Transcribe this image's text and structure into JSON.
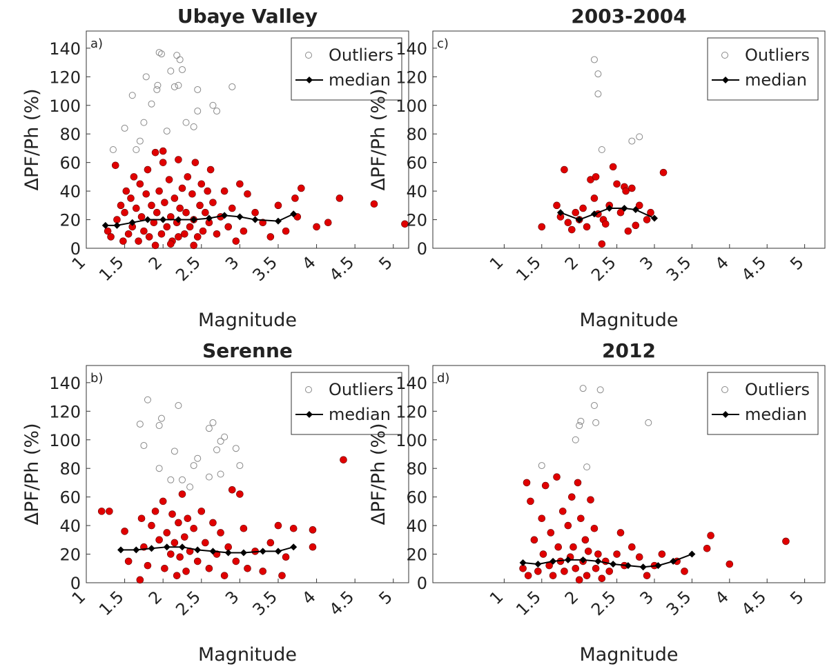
{
  "chart_data": [
    {
      "type": "scatter",
      "title": "Ubaye Valley",
      "panel_label": "a)",
      "x_label": "Magnitude",
      "y_label": "ΔPF/Ph (%)",
      "xlim": [
        1,
        5.2
      ],
      "ylim": [
        0,
        152
      ],
      "xticks": [
        1,
        1.5,
        2,
        2.5,
        3,
        3.5,
        4,
        4.5,
        5
      ],
      "yticks": [
        0,
        20,
        40,
        60,
        80,
        100,
        120,
        140
      ],
      "legend": "upper right",
      "series": [
        {
          "color": "#e00000",
          "x": [
            1.28,
            1.32,
            1.38,
            1.4,
            1.45,
            1.48,
            1.5,
            1.52,
            1.55,
            1.58,
            1.6,
            1.62,
            1.65,
            1.68,
            1.7,
            1.72,
            1.75,
            1.78,
            1.8,
            1.82,
            1.85,
            1.88,
            1.9,
            1.92,
            1.95,
            1.98,
            2.0,
            2.02,
            2.05,
            2.08,
            2.1,
            2.12,
            2.15,
            2.18,
            2.2,
            2.22,
            2.25,
            2.28,
            2.3,
            2.32,
            2.35,
            2.38,
            2.4,
            2.42,
            2.45,
            2.48,
            2.5,
            2.52,
            2.55,
            2.58,
            2.6,
            2.62,
            2.65,
            2.7,
            2.75,
            2.8,
            2.85,
            2.9,
            2.95,
            3.0,
            3.05,
            3.1,
            3.2,
            3.3,
            3.4,
            3.5,
            3.6,
            3.72,
            3.75,
            3.8,
            4.0,
            4.15,
            4.3,
            4.75,
            5.15,
            1.9,
            2.0,
            2.1,
            2.2,
            2.4
          ],
          "values": [
            12,
            8,
            58,
            20,
            30,
            5,
            25,
            40,
            10,
            35,
            15,
            50,
            28,
            5,
            45,
            22,
            12,
            38,
            55,
            8,
            30,
            18,
            67,
            25,
            40,
            10,
            60,
            32,
            15,
            48,
            22,
            5,
            35,
            18,
            62,
            28,
            42,
            10,
            25,
            50,
            15,
            38,
            20,
            60,
            8,
            30,
            45,
            12,
            25,
            40,
            18,
            55,
            32,
            10,
            22,
            40,
            15,
            28,
            5,
            45,
            12,
            38,
            25,
            18,
            8,
            30,
            12,
            35,
            22,
            42,
            15,
            18,
            35,
            31,
            17,
            2,
            68,
            3,
            8,
            2
          ]
        },
        {
          "name": "Outliers",
          "color": "#888888",
          "x": [
            1.35,
            1.5,
            1.6,
            1.65,
            1.7,
            1.75,
            1.78,
            1.85,
            1.92,
            1.93,
            1.95,
            1.98,
            2.05,
            2.1,
            2.15,
            2.18,
            2.2,
            2.22,
            2.25,
            2.3,
            2.4,
            2.45,
            2.45,
            2.65,
            2.7,
            2.9
          ],
          "values": [
            69,
            84,
            107,
            69,
            75,
            88,
            120,
            101,
            111,
            114,
            137,
            136,
            82,
            124,
            113,
            135,
            114,
            132,
            125,
            88,
            85,
            96,
            111,
            100,
            96,
            113
          ]
        },
        {
          "name": "median",
          "color": "#000000",
          "x": [
            1.25,
            1.4,
            1.6,
            1.8,
            2,
            2.2,
            2.4,
            2.6,
            2.8,
            3,
            3.2,
            3.5,
            3.7
          ],
          "values": [
            16,
            16,
            18,
            20,
            20,
            20,
            20,
            21,
            23,
            22,
            20,
            19,
            24
          ]
        }
      ]
    },
    {
      "type": "scatter",
      "title": "2003-2004",
      "panel_label": "c)",
      "x_label": "Magnitude",
      "y_label": "ΔPF/Ph (%)",
      "xlim": [
        0.05,
        5.27
      ],
      "ylim": [
        0,
        152
      ],
      "xticks": [
        1,
        1.5,
        2,
        2.5,
        3,
        3.5,
        4,
        4.5,
        5
      ],
      "yticks": [
        0,
        20,
        40,
        60,
        80,
        100,
        120,
        140
      ],
      "legend": "upper right",
      "series": [
        {
          "color": "#e00000",
          "x": [
            1.5,
            1.7,
            1.75,
            1.8,
            1.85,
            1.9,
            1.95,
            2.0,
            2.05,
            2.1,
            2.15,
            2.2,
            2.22,
            2.25,
            2.3,
            2.32,
            2.35,
            2.4,
            2.45,
            2.5,
            2.55,
            2.6,
            2.62,
            2.65,
            2.7,
            2.75,
            2.8,
            2.9,
            2.95,
            3.12
          ],
          "values": [
            15,
            30,
            22,
            55,
            18,
            13,
            25,
            20,
            28,
            15,
            48,
            35,
            50,
            24,
            3,
            20,
            17,
            30,
            57,
            45,
            25,
            43,
            40,
            12,
            42,
            16,
            30,
            20,
            25,
            53
          ]
        },
        {
          "name": "Outliers",
          "color": "#888888",
          "x": [
            2.2,
            2.25,
            2.25,
            2.3,
            2.7,
            2.8
          ],
          "values": [
            132,
            122,
            108,
            69,
            75,
            78
          ]
        },
        {
          "name": "median",
          "color": "#000000",
          "x": [
            1.75,
            2,
            2.2,
            2.4,
            2.6,
            2.75,
            3
          ],
          "values": [
            25,
            20,
            24,
            28,
            28,
            27,
            21
          ]
        }
      ]
    },
    {
      "type": "scatter",
      "title": "Serenne",
      "panel_label": "b)",
      "x_label": "Magnitude",
      "y_label": "ΔPF/Ph (%)",
      "xlim": [
        1,
        5.2
      ],
      "ylim": [
        0,
        152
      ],
      "xticks": [
        1,
        1.5,
        2,
        2.5,
        3,
        3.5,
        4,
        4.5,
        5
      ],
      "yticks": [
        0,
        20,
        40,
        60,
        80,
        100,
        120,
        140
      ],
      "legend": "upper right",
      "series": [
        {
          "color": "#e00000",
          "x": [
            1.2,
            1.3,
            1.5,
            1.55,
            1.7,
            1.72,
            1.75,
            1.8,
            1.85,
            1.9,
            1.95,
            2.0,
            2.02,
            2.05,
            2.1,
            2.12,
            2.15,
            2.18,
            2.2,
            2.22,
            2.25,
            2.28,
            2.3,
            2.32,
            2.35,
            2.4,
            2.45,
            2.5,
            2.55,
            2.6,
            2.65,
            2.7,
            2.75,
            2.8,
            2.85,
            2.9,
            2.95,
            3.0,
            3.05,
            3.1,
            3.2,
            3.3,
            3.4,
            3.5,
            3.55,
            3.6,
            3.7,
            3.95,
            3.95,
            4.35
          ],
          "values": [
            50,
            50,
            36,
            15,
            2,
            45,
            25,
            12,
            40,
            50,
            30,
            57,
            10,
            35,
            20,
            48,
            28,
            5,
            42,
            18,
            62,
            32,
            8,
            45,
            22,
            38,
            15,
            50,
            28,
            10,
            42,
            20,
            35,
            5,
            25,
            65,
            15,
            62,
            38,
            10,
            22,
            8,
            28,
            40,
            5,
            18,
            38,
            37,
            25,
            86
          ]
        },
        {
          "name": "Outliers",
          "color": "#888888",
          "x": [
            1.7,
            1.75,
            1.8,
            1.95,
            1.95,
            1.98,
            2.1,
            2.15,
            2.2,
            2.25,
            2.35,
            2.4,
            2.45,
            2.6,
            2.6,
            2.65,
            2.7,
            2.75,
            2.75,
            2.8,
            2.95,
            3.0
          ],
          "values": [
            111,
            96,
            128,
            80,
            110,
            115,
            72,
            92,
            124,
            72,
            67,
            82,
            87,
            74,
            108,
            112,
            93,
            76,
            99,
            102,
            94,
            82
          ]
        },
        {
          "name": "median",
          "color": "#000000",
          "x": [
            1.45,
            1.65,
            1.85,
            2.05,
            2.25,
            2.45,
            2.65,
            2.85,
            3.05,
            3.3,
            3.5,
            3.7
          ],
          "values": [
            23,
            23,
            24,
            25,
            25,
            23,
            22,
            21,
            21,
            22,
            22,
            25
          ]
        }
      ]
    },
    {
      "type": "scatter",
      "title": "2012",
      "panel_label": "d)",
      "x_label": "Magnitude",
      "y_label": "ΔPF/Ph (%)",
      "xlim": [
        0.05,
        5.27
      ],
      "ylim": [
        0,
        152
      ],
      "xticks": [
        1,
        1.5,
        2,
        2.5,
        3,
        3.5,
        4,
        4.5,
        5
      ],
      "yticks": [
        0,
        20,
        40,
        60,
        80,
        100,
        120,
        140
      ],
      "legend": "upper right",
      "series": [
        {
          "color": "#e00000",
          "x": [
            1.25,
            1.3,
            1.32,
            1.35,
            1.4,
            1.45,
            1.5,
            1.52,
            1.55,
            1.6,
            1.62,
            1.65,
            1.7,
            1.72,
            1.75,
            1.78,
            1.8,
            1.85,
            1.88,
            1.9,
            1.92,
            1.95,
            1.98,
            2.0,
            2.02,
            2.05,
            2.08,
            2.1,
            2.12,
            2.15,
            2.2,
            2.22,
            2.25,
            2.3,
            2.35,
            2.4,
            2.5,
            2.55,
            2.6,
            2.7,
            2.8,
            2.9,
            3.0,
            3.1,
            3.3,
            3.4,
            3.7,
            3.75,
            4.0,
            4.75
          ],
          "values": [
            10,
            70,
            5,
            57,
            30,
            8,
            45,
            20,
            68,
            12,
            35,
            5,
            74,
            25,
            15,
            50,
            8,
            40,
            18,
            60,
            25,
            10,
            70,
            2,
            45,
            15,
            30,
            5,
            22,
            58,
            38,
            10,
            20,
            3,
            15,
            8,
            20,
            35,
            12,
            25,
            18,
            5,
            12,
            20,
            15,
            8,
            24,
            33,
            13,
            29
          ]
        },
        {
          "name": "Outliers",
          "color": "#888888",
          "x": [
            1.5,
            1.95,
            2.0,
            2.02,
            2.05,
            2.1,
            2.2,
            2.22,
            2.28,
            2.92
          ],
          "values": [
            82,
            100,
            110,
            113,
            136,
            81,
            124,
            112,
            135,
            112
          ]
        },
        {
          "name": "median",
          "color": "#000000",
          "x": [
            1.25,
            1.45,
            1.65,
            1.85,
            2.05,
            2.25,
            2.45,
            2.65,
            2.85,
            3.05,
            3.25,
            3.5
          ],
          "values": [
            14,
            13,
            15,
            16,
            16,
            15,
            13,
            12,
            11,
            12,
            15,
            20
          ]
        }
      ]
    }
  ]
}
